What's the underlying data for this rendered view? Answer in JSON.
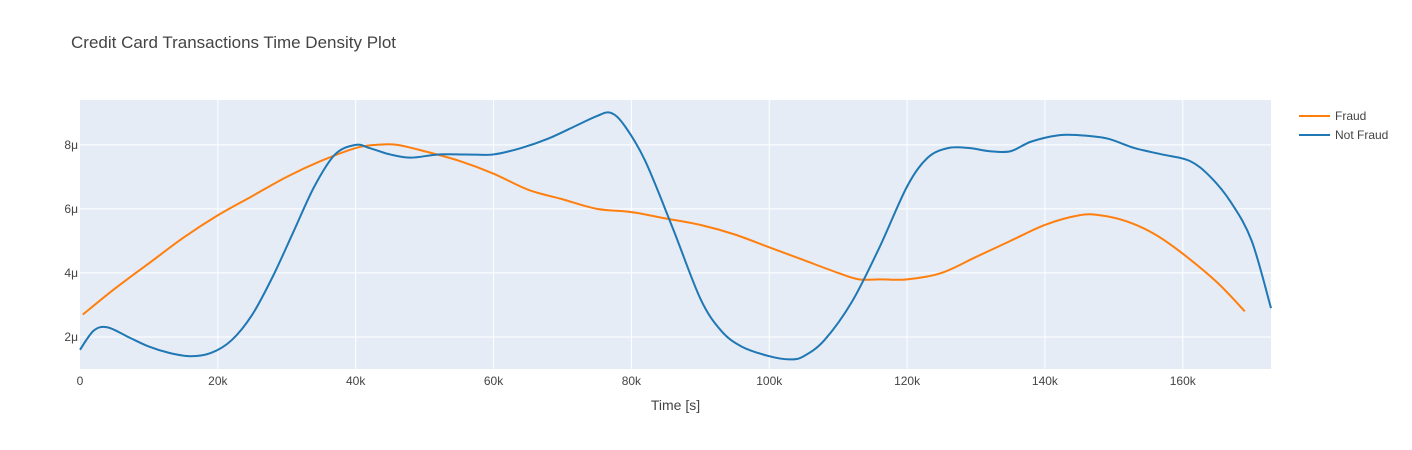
{
  "chart_data": {
    "type": "line",
    "title": "Credit Card Transactions Time Density Plot",
    "xlabel": "Time [s]",
    "ylabel": "",
    "xlim": [
      0,
      172800
    ],
    "ylim": [
      1e-06,
      9.4e-06
    ],
    "x_ticks": [
      0,
      20000,
      40000,
      60000,
      80000,
      100000,
      120000,
      140000,
      160000
    ],
    "x_tick_labels": [
      "0",
      "20k",
      "40k",
      "60k",
      "80k",
      "100k",
      "120k",
      "140k",
      "160k"
    ],
    "y_ticks": [
      2e-06,
      4e-06,
      6e-06,
      8e-06
    ],
    "y_tick_labels": [
      "2μ",
      "4μ",
      "6μ",
      "8μ"
    ],
    "grid": true,
    "legend_position": "top-right",
    "series": [
      {
        "name": "Fraud",
        "color": "#ff7f0e",
        "x": [
          406,
          5000,
          10000,
          15000,
          20000,
          25000,
          30000,
          35000,
          40000,
          43000,
          46000,
          50000,
          55000,
          60000,
          65000,
          70000,
          75000,
          80000,
          85000,
          90000,
          95000,
          100000,
          105000,
          110000,
          113000,
          116000,
          120000,
          125000,
          130000,
          135000,
          140000,
          145000,
          148000,
          152000,
          156000,
          160000,
          165000,
          169000
        ],
        "y": [
          2.7e-06,
          3.5e-06,
          4.3e-06,
          5.1e-06,
          5.8e-06,
          6.4e-06,
          7e-06,
          7.5e-06,
          7.9e-06,
          8e-06,
          8e-06,
          7.8e-06,
          7.5e-06,
          7.1e-06,
          6.6e-06,
          6.3e-06,
          6e-06,
          5.9e-06,
          5.7e-06,
          5.5e-06,
          5.2e-06,
          4.8e-06,
          4.4e-06,
          4e-06,
          3.8e-06,
          3.8e-06,
          3.8e-06,
          4e-06,
          4.5e-06,
          5e-06,
          5.5e-06,
          5.8e-06,
          5.8e-06,
          5.6e-06,
          5.2e-06,
          4.6e-06,
          3.7e-06,
          2.8e-06
        ]
      },
      {
        "name": "Not Fraud",
        "color": "#1f77b4",
        "x": [
          0,
          2000,
          4000,
          7000,
          10000,
          13000,
          16000,
          19000,
          22000,
          25000,
          28000,
          31000,
          34000,
          37000,
          40000,
          42000,
          45000,
          48000,
          52000,
          56000,
          60000,
          64000,
          68000,
          72000,
          75000,
          77000,
          79000,
          82000,
          86000,
          90000,
          93000,
          96000,
          100000,
          103000,
          105000,
          108000,
          112000,
          116000,
          120000,
          123000,
          126000,
          129000,
          132000,
          135000,
          138000,
          142000,
          145000,
          149000,
          153000,
          157000,
          161000,
          164000,
          167000,
          170000,
          172800
        ],
        "y": [
          1.6e-06,
          2.2e-06,
          2.3e-06,
          2e-06,
          1.7e-06,
          1.5e-06,
          1.4e-06,
          1.5e-06,
          1.9e-06,
          2.7e-06,
          3.9e-06,
          5.3e-06,
          6.7e-06,
          7.7e-06,
          8e-06,
          7.9e-06,
          7.7e-06,
          7.6e-06,
          7.7e-06,
          7.7e-06,
          7.7e-06,
          7.9e-06,
          8.2e-06,
          8.6e-06,
          8.9e-06,
          9e-06,
          8.6e-06,
          7.5e-06,
          5.4e-06,
          3.2e-06,
          2.2e-06,
          1.7e-06,
          1.4e-06,
          1.3e-06,
          1.4e-06,
          1.9e-06,
          3.1e-06,
          4.8e-06,
          6.7e-06,
          7.6e-06,
          7.9e-06,
          7.9e-06,
          7.8e-06,
          7.8e-06,
          8.1e-06,
          8.3e-06,
          8.3e-06,
          8.2e-06,
          7.9e-06,
          7.7e-06,
          7.5e-06,
          7e-06,
          6.2e-06,
          5e-06,
          2.9e-06
        ]
      }
    ]
  }
}
